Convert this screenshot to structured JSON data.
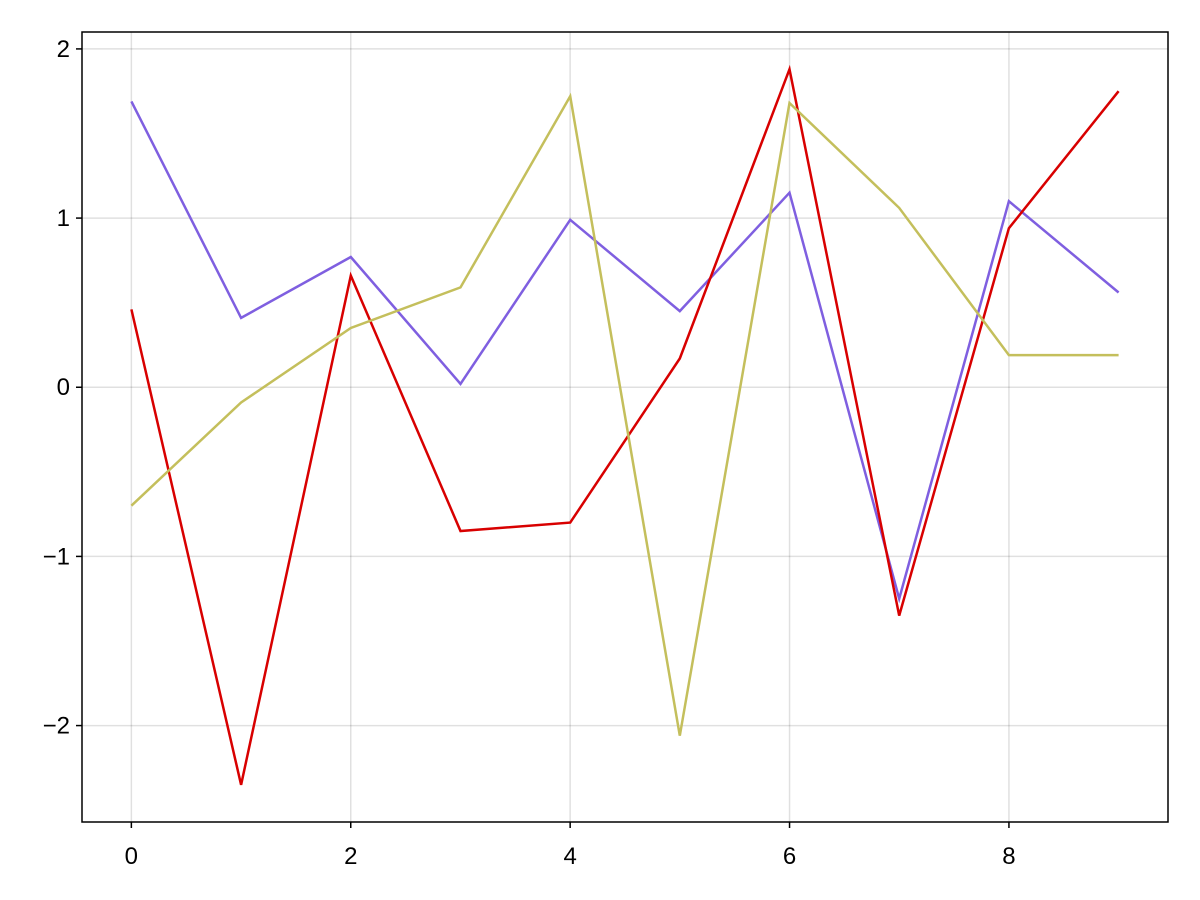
{
  "chart_data": {
    "type": "line",
    "title": "",
    "xlabel": "",
    "ylabel": "",
    "x": [
      0,
      1,
      2,
      3,
      4,
      5,
      6,
      7,
      8,
      9
    ],
    "xlim": [
      -0.45,
      9.45
    ],
    "ylim": [
      -2.57,
      2.1
    ],
    "xticks": [
      0,
      2,
      4,
      6,
      8
    ],
    "yticks": [
      -2,
      -1,
      0,
      1,
      2
    ],
    "xtick_labels": [
      "0",
      "2",
      "4",
      "6",
      "8"
    ],
    "ytick_labels": [
      "−2",
      "−1",
      "0",
      "1",
      "2"
    ],
    "grid": true,
    "legend": false,
    "series": [
      {
        "color": "#7f5fe0",
        "values": [
          1.69,
          0.41,
          0.77,
          0.02,
          0.99,
          0.45,
          1.15,
          -1.25,
          1.1,
          0.56
        ]
      },
      {
        "color": "#d80000",
        "values": [
          0.46,
          -2.35,
          0.66,
          -0.85,
          -0.8,
          0.17,
          1.88,
          -1.35,
          0.94,
          1.75
        ]
      },
      {
        "color": "#c4bf5c",
        "values": [
          -0.7,
          -0.09,
          0.35,
          0.59,
          1.72,
          -2.06,
          1.68,
          1.06,
          0.19,
          0.19
        ]
      }
    ]
  }
}
